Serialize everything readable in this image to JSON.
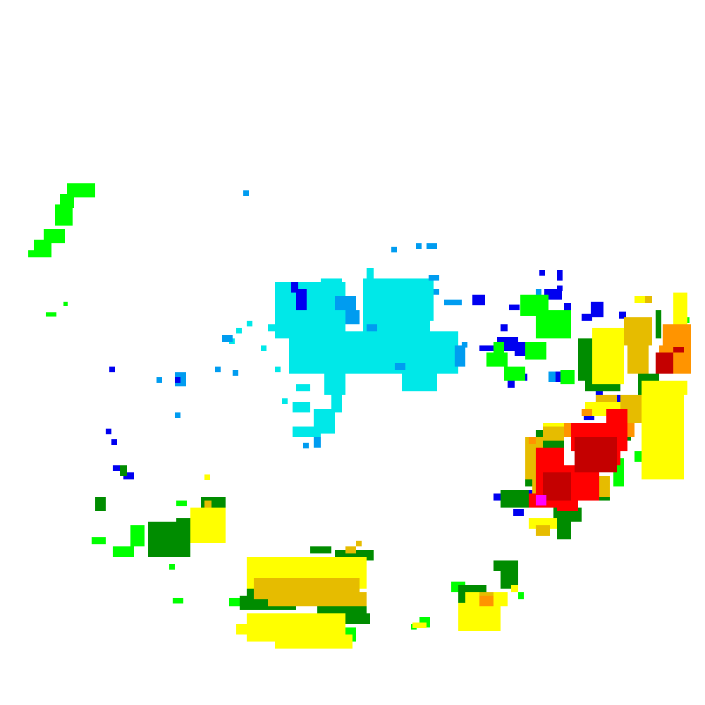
{
  "map": {
    "layer": "radar-reflectivity",
    "background": "#ffffff",
    "palette": {
      "cyan": "#00e8e8",
      "lightblue": "#009cf0",
      "blue": "#0000f0",
      "brightgreen": "#00ff00",
      "green": "#008c00",
      "yellow": "#ffff00",
      "gold": "#e6bc00",
      "orange": "#ff9400",
      "red": "#ff0000",
      "darkred": "#c40000",
      "magenta": "#ff00ff"
    }
  }
}
